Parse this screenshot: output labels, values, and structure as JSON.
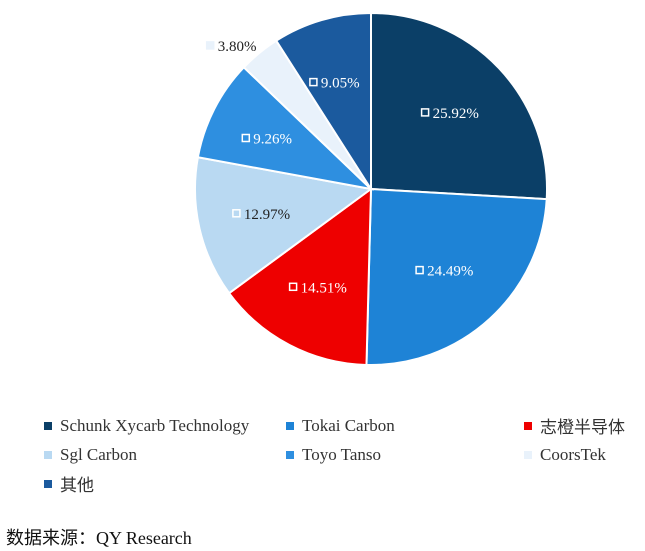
{
  "chart_data": {
    "type": "pie",
    "categories": [
      "Schunk Xycarb Technology",
      "Tokai Carbon",
      "志橙半导体",
      "Sgl Carbon",
      "Toyo Tanso",
      "CoorsTek",
      "其他"
    ],
    "values": [
      25.92,
      24.49,
      14.51,
      12.97,
      9.26,
      3.8,
      9.05
    ],
    "labels": [
      "25.92%",
      "24.49%",
      "14.51%",
      "12.97%",
      "9.26%",
      "3.80%",
      "9.05%"
    ],
    "colors": [
      "#0b3f67",
      "#1e83d6",
      "#ee0000",
      "#b9d9f2",
      "#2e8fe0",
      "#e9f2fb",
      "#1b5a9e"
    ],
    "start_angle_deg": 0,
    "direction": "clockwise",
    "legend_position": "bottom"
  },
  "source": "数据来源：QY Research"
}
